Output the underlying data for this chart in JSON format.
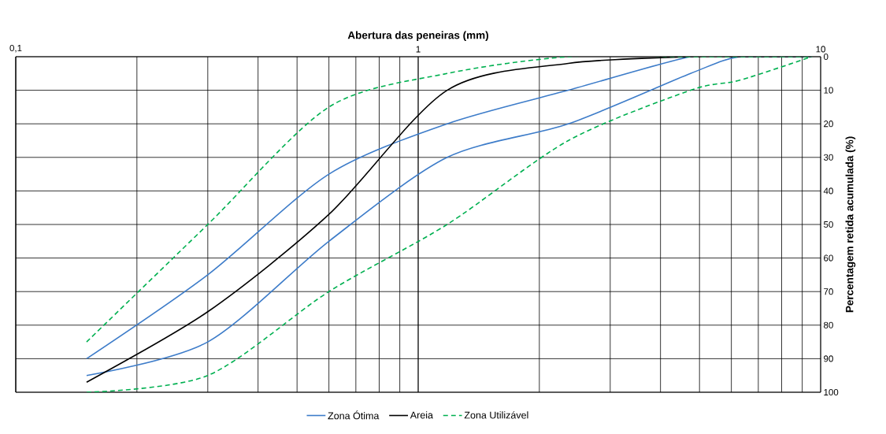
{
  "chart_data": {
    "type": "line",
    "xlabel": "Abertura das peneiras (mm)",
    "ylabel": "Percentagem retida acumulada (%)",
    "log": "x",
    "x": [
      0.15,
      0.3,
      0.6,
      1.18,
      2.36,
      4.75,
      6.3,
      9.5
    ],
    "xlim": [
      0.1,
      10
    ],
    "xticks": [
      {
        "value": 0.1,
        "label": "0,1"
      },
      1,
      10
    ],
    "ylim": [
      100,
      0
    ],
    "yticks": [
      0,
      10,
      20,
      30,
      40,
      50,
      60,
      70,
      80,
      90,
      100
    ],
    "grid": true,
    "legend": "bottom",
    "series": [
      {
        "name": "Zona Ótima",
        "color": "#3d7cc9",
        "line_style": "solid",
        "values": [
          90,
          65,
          35,
          20,
          10,
          0,
          0,
          0
        ]
      },
      {
        "color": "#3d7cc9",
        "line_style": "solid",
        "values": [
          95,
          85,
          55,
          30,
          20,
          5,
          0,
          0
        ]
      },
      {
        "name": "Areia",
        "color": "#000000",
        "line_style": "solid",
        "values": [
          97,
          76,
          47,
          10,
          2,
          0,
          0,
          0
        ]
      },
      {
        "name": "Zona Utilizável",
        "color": "#00b050",
        "line_style": "dashed",
        "values": [
          85,
          50,
          15,
          5,
          0,
          0,
          0,
          0
        ]
      },
      {
        "color": "#00b050",
        "line_style": "dashed",
        "values": [
          100,
          95,
          70,
          50,
          25,
          10,
          7,
          0
        ]
      }
    ]
  }
}
